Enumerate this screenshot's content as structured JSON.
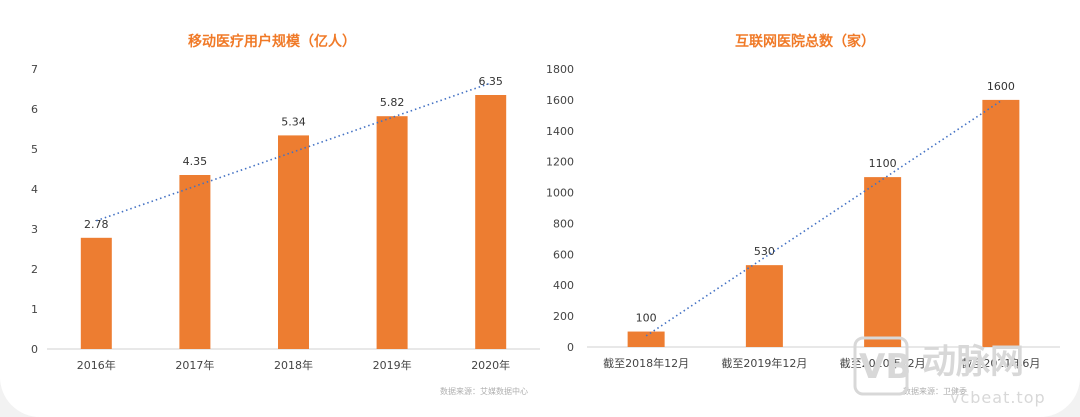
{
  "colors": {
    "bar": "#ed7d31",
    "trend": "#4472c4",
    "title": "#f07a28",
    "axis": "#d0d0d0"
  },
  "chart_data": [
    {
      "type": "bar",
      "title": "移动医疗用户规模（亿人）",
      "categories": [
        "2016年",
        "2017年",
        "2018年",
        "2019年",
        "2020年"
      ],
      "values": [
        2.78,
        4.35,
        5.34,
        5.82,
        6.35
      ],
      "value_labels": [
        "2.78",
        "4.35",
        "5.34",
        "5.82",
        "6.35"
      ],
      "ylim": [
        0,
        7
      ],
      "yticks": [
        0,
        1,
        2,
        3,
        4,
        5,
        6,
        7
      ],
      "trendline": "linear, dotted",
      "grid": false
    },
    {
      "type": "bar",
      "title": "互联网医院总数（家）",
      "categories": [
        "截至2018年12月",
        "截至2019年12月",
        "截至2020年12月",
        "截至2021年6月"
      ],
      "values": [
        100,
        530,
        1100,
        1600
      ],
      "value_labels": [
        "100",
        "530",
        "1100",
        "1600"
      ],
      "ylim": [
        0,
        1800
      ],
      "yticks": [
        0,
        200,
        400,
        600,
        800,
        1000,
        1200,
        1400,
        1600,
        1800
      ],
      "trendline": "linear, dotted",
      "grid": false
    }
  ],
  "source_note": "数据来源：艾媒数据中心",
  "source_note_2": "数据来源：卫健委",
  "watermark": {
    "logo": "VB",
    "name": "动脉网",
    "url": "vcbeat.top"
  }
}
